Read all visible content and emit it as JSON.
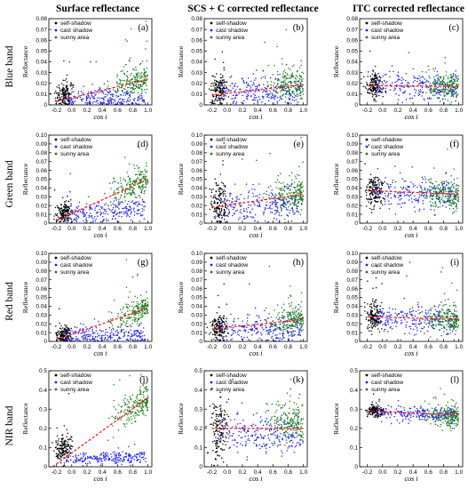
{
  "figure": {
    "column_titles": [
      "Surface reflectance",
      "SCS + C corrected reflectance",
      "ITC corrected reflectance"
    ],
    "row_labels": [
      "Blue band",
      "Green band",
      "Red band",
      "NIR band"
    ],
    "ylabel": "Reflectance",
    "xlabel": "cos i",
    "legend": [
      "self-shadow",
      "cast shadow",
      "sunny area"
    ],
    "colors": {
      "self": "#000000",
      "cast": "#1f1fff",
      "sunny": "#1b7a1b",
      "fit": "#ff2020"
    }
  },
  "chart_data": [
    {
      "type": "scatter",
      "panel": "(a)",
      "row": 0,
      "col": 0,
      "xlim": [
        -0.3,
        1.05
      ],
      "ylim": [
        0,
        0.08
      ],
      "xticks": [
        -0.2,
        0.0,
        0.2,
        0.4,
        0.6,
        0.8,
        1.0
      ],
      "yticks": [
        0,
        0.01,
        0.02,
        0.03,
        0.04,
        0.05,
        0.06,
        0.07,
        0.08
      ],
      "fit": {
        "x": [
          -0.2,
          1.0
        ],
        "y": [
          0.003,
          0.024
        ]
      },
      "clusters": {
        "self": {
          "x": [
            -0.2,
            0.0
          ],
          "y": [
            0.008,
            0.012
          ],
          "spread": 0.006
        },
        "cast": {
          "x": [
            -0.1,
            0.97
          ],
          "y": [
            0.006,
            0.005
          ],
          "spread": 0.005
        },
        "sunny": {
          "x": [
            0.45,
            1.0
          ],
          "y": [
            0.016,
            0.025
          ],
          "spread": 0.007
        }
      }
    },
    {
      "type": "scatter",
      "panel": "(b)",
      "row": 0,
      "col": 1,
      "xlim": [
        -0.3,
        1.05
      ],
      "ylim": [
        0,
        0.08
      ],
      "xticks": [
        -0.2,
        0.0,
        0.2,
        0.4,
        0.6,
        0.8,
        1.0
      ],
      "yticks": [
        0,
        0.01,
        0.02,
        0.03,
        0.04,
        0.05,
        0.06,
        0.07,
        0.08
      ],
      "fit": {
        "x": [
          -0.2,
          1.0
        ],
        "y": [
          0.009,
          0.019
        ]
      },
      "clusters": {
        "self": {
          "x": [
            -0.2,
            0.0
          ],
          "y": [
            0.013,
            0.013
          ],
          "spread": 0.008
        },
        "cast": {
          "x": [
            -0.1,
            0.97
          ],
          "y": [
            0.012,
            0.011
          ],
          "spread": 0.007
        },
        "sunny": {
          "x": [
            0.45,
            1.0
          ],
          "y": [
            0.018,
            0.019
          ],
          "spread": 0.007
        }
      }
    },
    {
      "type": "scatter",
      "panel": "(c)",
      "row": 0,
      "col": 2,
      "xlim": [
        -0.3,
        1.05
      ],
      "ylim": [
        0,
        0.08
      ],
      "xticks": [
        -0.2,
        0.0,
        0.2,
        0.4,
        0.6,
        0.8,
        1.0
      ],
      "yticks": [
        0,
        0.01,
        0.02,
        0.03,
        0.04,
        0.05,
        0.06,
        0.07,
        0.08
      ],
      "fit": {
        "x": [
          -0.2,
          1.0
        ],
        "y": [
          0.018,
          0.017
        ]
      },
      "clusters": {
        "self": {
          "x": [
            -0.2,
            0.0
          ],
          "y": [
            0.018,
            0.018
          ],
          "spread": 0.006
        },
        "cast": {
          "x": [
            -0.1,
            0.97
          ],
          "y": [
            0.018,
            0.017
          ],
          "spread": 0.006
        },
        "sunny": {
          "x": [
            0.45,
            1.0
          ],
          "y": [
            0.017,
            0.017
          ],
          "spread": 0.006
        }
      }
    },
    {
      "type": "scatter",
      "panel": "(d)",
      "row": 1,
      "col": 0,
      "xlim": [
        -0.3,
        1.05
      ],
      "ylim": [
        0,
        0.1
      ],
      "xticks": [
        -0.2,
        0.0,
        0.2,
        0.4,
        0.6,
        0.8,
        1.0
      ],
      "yticks": [
        0,
        0.01,
        0.02,
        0.03,
        0.04,
        0.05,
        0.06,
        0.07,
        0.08,
        0.09,
        0.1
      ],
      "fit": {
        "x": [
          -0.2,
          1.0
        ],
        "y": [
          0.003,
          0.05
        ]
      },
      "clusters": {
        "self": {
          "x": [
            -0.2,
            0.0
          ],
          "y": [
            0.01,
            0.012
          ],
          "spread": 0.006
        },
        "cast": {
          "x": [
            -0.1,
            0.97
          ],
          "y": [
            0.008,
            0.018
          ],
          "spread": 0.007
        },
        "sunny": {
          "x": [
            0.45,
            1.0
          ],
          "y": [
            0.033,
            0.048
          ],
          "spread": 0.008
        }
      }
    },
    {
      "type": "scatter",
      "panel": "(e)",
      "row": 1,
      "col": 1,
      "xlim": [
        -0.3,
        1.05
      ],
      "ylim": [
        0,
        0.1
      ],
      "xticks": [
        -0.2,
        0.0,
        0.2,
        0.4,
        0.6,
        0.8,
        1.0
      ],
      "yticks": [
        0,
        0.01,
        0.02,
        0.03,
        0.04,
        0.05,
        0.06,
        0.07,
        0.08,
        0.09,
        0.1
      ],
      "fit": {
        "x": [
          -0.2,
          1.0
        ],
        "y": [
          0.018,
          0.033
        ]
      },
      "clusters": {
        "self": {
          "x": [
            -0.2,
            0.0
          ],
          "y": [
            0.02,
            0.022
          ],
          "spread": 0.012
        },
        "cast": {
          "x": [
            -0.1,
            0.97
          ],
          "y": [
            0.018,
            0.022
          ],
          "spread": 0.01
        },
        "sunny": {
          "x": [
            0.45,
            1.0
          ],
          "y": [
            0.03,
            0.033
          ],
          "spread": 0.009
        }
      }
    },
    {
      "type": "scatter",
      "panel": "(f)",
      "row": 1,
      "col": 2,
      "xlim": [
        -0.3,
        1.05
      ],
      "ylim": [
        0,
        0.1
      ],
      "xticks": [
        -0.2,
        0.0,
        0.2,
        0.4,
        0.6,
        0.8,
        1.0
      ],
      "yticks": [
        0,
        0.01,
        0.02,
        0.03,
        0.04,
        0.05,
        0.06,
        0.07,
        0.08,
        0.09,
        0.1
      ],
      "fit": {
        "x": [
          -0.2,
          1.0
        ],
        "y": [
          0.037,
          0.033
        ]
      },
      "clusters": {
        "self": {
          "x": [
            -0.2,
            0.0
          ],
          "y": [
            0.037,
            0.037
          ],
          "spread": 0.009
        },
        "cast": {
          "x": [
            -0.1,
            0.97
          ],
          "y": [
            0.035,
            0.032
          ],
          "spread": 0.009
        },
        "sunny": {
          "x": [
            0.45,
            1.0
          ],
          "y": [
            0.035,
            0.033
          ],
          "spread": 0.008
        }
      }
    },
    {
      "type": "scatter",
      "panel": "(g)",
      "row": 2,
      "col": 0,
      "xlim": [
        -0.3,
        1.05
      ],
      "ylim": [
        0,
        0.1
      ],
      "xticks": [
        -0.2,
        0.0,
        0.2,
        0.4,
        0.6,
        0.8,
        1.0
      ],
      "yticks": [
        0,
        0.01,
        0.02,
        0.03,
        0.04,
        0.05,
        0.06,
        0.07,
        0.08,
        0.09,
        0.1
      ],
      "fit": {
        "x": [
          -0.2,
          1.0
        ],
        "y": [
          0.002,
          0.038
        ]
      },
      "clusters": {
        "self": {
          "x": [
            -0.2,
            0.0
          ],
          "y": [
            0.006,
            0.008
          ],
          "spread": 0.005
        },
        "cast": {
          "x": [
            -0.1,
            0.97
          ],
          "y": [
            0.005,
            0.008
          ],
          "spread": 0.005
        },
        "sunny": {
          "x": [
            0.45,
            1.0
          ],
          "y": [
            0.025,
            0.038
          ],
          "spread": 0.008
        }
      }
    },
    {
      "type": "scatter",
      "panel": "(h)",
      "row": 2,
      "col": 1,
      "xlim": [
        -0.3,
        1.05
      ],
      "ylim": [
        0,
        0.1
      ],
      "xticks": [
        -0.2,
        0.0,
        0.2,
        0.4,
        0.6,
        0.8,
        1.0
      ],
      "yticks": [
        0,
        0.01,
        0.02,
        0.03,
        0.04,
        0.05,
        0.06,
        0.07,
        0.08,
        0.09,
        0.1
      ],
      "fit": {
        "x": [
          -0.2,
          1.0
        ],
        "y": [
          0.014,
          0.025
        ]
      },
      "clusters": {
        "self": {
          "x": [
            -0.2,
            0.0
          ],
          "y": [
            0.015,
            0.015
          ],
          "spread": 0.009
        },
        "cast": {
          "x": [
            -0.1,
            0.97
          ],
          "y": [
            0.013,
            0.014
          ],
          "spread": 0.008
        },
        "sunny": {
          "x": [
            0.45,
            1.0
          ],
          "y": [
            0.022,
            0.025
          ],
          "spread": 0.008
        }
      }
    },
    {
      "type": "scatter",
      "panel": "(i)",
      "row": 2,
      "col": 2,
      "xlim": [
        -0.3,
        1.05
      ],
      "ylim": [
        0,
        0.1
      ],
      "xticks": [
        -0.2,
        0.0,
        0.2,
        0.4,
        0.6,
        0.8,
        1.0
      ],
      "yticks": [
        0,
        0.01,
        0.02,
        0.03,
        0.04,
        0.05,
        0.06,
        0.07,
        0.08,
        0.09,
        0.1
      ],
      "fit": {
        "x": [
          -0.2,
          1.0
        ],
        "y": [
          0.028,
          0.025
        ]
      },
      "clusters": {
        "self": {
          "x": [
            -0.2,
            0.0
          ],
          "y": [
            0.028,
            0.028
          ],
          "spread": 0.008
        },
        "cast": {
          "x": [
            -0.1,
            0.97
          ],
          "y": [
            0.026,
            0.024
          ],
          "spread": 0.008
        },
        "sunny": {
          "x": [
            0.45,
            1.0
          ],
          "y": [
            0.026,
            0.025
          ],
          "spread": 0.007
        }
      }
    },
    {
      "type": "scatter",
      "panel": "(j)",
      "row": 3,
      "col": 0,
      "xlim": [
        -0.3,
        1.05
      ],
      "ylim": [
        0,
        0.5
      ],
      "xticks": [
        -0.2,
        0.0,
        0.2,
        0.4,
        0.6,
        0.8,
        1.0
      ],
      "yticks": [
        0,
        0.1,
        0.2,
        0.3,
        0.4,
        0.5
      ],
      "fit": {
        "x": [
          -0.25,
          1.0
        ],
        "y": [
          0.0,
          0.36
        ]
      },
      "clusters": {
        "self": {
          "x": [
            -0.2,
            0.0
          ],
          "y": [
            0.09,
            0.1
          ],
          "spread": 0.035
        },
        "cast": {
          "x": [
            -0.1,
            0.97
          ],
          "y": [
            0.04,
            0.05
          ],
          "spread": 0.015
        },
        "sunny": {
          "x": [
            0.45,
            1.0
          ],
          "y": [
            0.24,
            0.35
          ],
          "spread": 0.04
        }
      }
    },
    {
      "type": "scatter",
      "panel": "(k)",
      "row": 3,
      "col": 1,
      "xlim": [
        -0.3,
        1.05
      ],
      "ylim": [
        0,
        0.5
      ],
      "xticks": [
        -0.2,
        0.0,
        0.2,
        0.4,
        0.6,
        0.8,
        1.0
      ],
      "yticks": [
        0,
        0.1,
        0.2,
        0.3,
        0.4,
        0.5
      ],
      "fit": {
        "x": [
          -0.2,
          1.0
        ],
        "y": [
          0.2,
          0.2
        ]
      },
      "clusters": {
        "self": {
          "x": [
            -0.2,
            0.0
          ],
          "y": [
            0.2,
            0.2
          ],
          "spread": 0.09
        },
        "cast": {
          "x": [
            -0.1,
            0.97
          ],
          "y": [
            0.18,
            0.16
          ],
          "spread": 0.05
        },
        "sunny": {
          "x": [
            0.45,
            1.0
          ],
          "y": [
            0.23,
            0.22
          ],
          "spread": 0.05
        }
      }
    },
    {
      "type": "scatter",
      "panel": "(l)",
      "row": 3,
      "col": 2,
      "xlim": [
        -0.3,
        1.05
      ],
      "ylim": [
        0,
        0.5
      ],
      "xticks": [
        -0.2,
        0.0,
        0.2,
        0.4,
        0.6,
        0.8,
        1.0
      ],
      "yticks": [
        0,
        0.1,
        0.2,
        0.3,
        0.4,
        0.5
      ],
      "fit": {
        "x": [
          -0.2,
          1.0
        ],
        "y": [
          0.29,
          0.27
        ]
      },
      "clusters": {
        "self": {
          "x": [
            -0.2,
            0.0
          ],
          "y": [
            0.29,
            0.29
          ],
          "spread": 0.015
        },
        "cast": {
          "x": [
            -0.1,
            0.97
          ],
          "y": [
            0.28,
            0.27
          ],
          "spread": 0.02
        },
        "sunny": {
          "x": [
            0.45,
            1.0
          ],
          "y": [
            0.27,
            0.26
          ],
          "spread": 0.03
        }
      }
    }
  ]
}
